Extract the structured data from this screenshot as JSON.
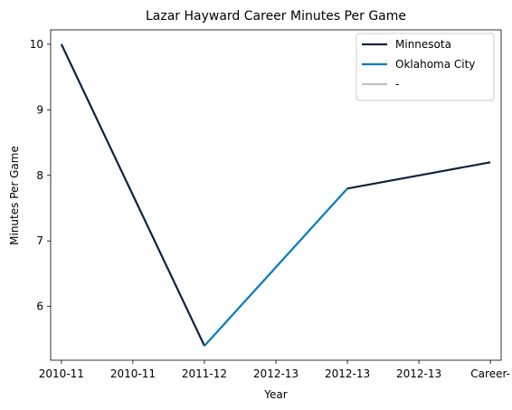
{
  "chart_data": {
    "type": "line",
    "title": "Lazar Hayward Career Minutes Per Game",
    "xlabel": "Year",
    "ylabel": "Minutes Per Game",
    "categories": [
      "2010-11",
      "2010-11",
      "2011-12",
      "2012-13",
      "2012-13",
      "2012-13",
      "Career-"
    ],
    "yticks": [
      6,
      7,
      8,
      9,
      10
    ],
    "ylim": [
      5.18,
      10.22
    ],
    "grid": false,
    "legend_position": "top-right",
    "series": [
      {
        "name": "Minnesota",
        "color": "#0c2340",
        "points": [
          [
            0,
            10.0
          ],
          [
            1,
            7.7
          ],
          [
            2,
            5.4
          ]
        ]
      },
      {
        "name": "Oklahoma City",
        "color": "#007ac1",
        "points": [
          [
            2,
            5.4
          ],
          [
            3,
            6.6
          ],
          [
            4,
            7.8
          ]
        ]
      },
      {
        "name": "Minnesota",
        "color": "#0c2340",
        "points": [
          [
            4,
            7.8
          ],
          [
            5,
            8.0
          ],
          [
            6,
            8.2
          ]
        ],
        "in_legend": false
      },
      {
        "name": "-",
        "color": "#c0c0c0",
        "points": []
      }
    ]
  }
}
